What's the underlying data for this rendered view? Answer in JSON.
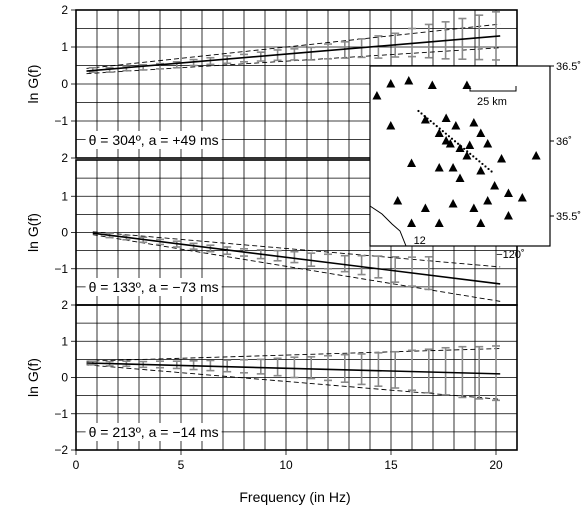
{
  "chart_data": {
    "type": "scatter",
    "xlabel": "Frequency (in Hz)",
    "ylabel": "ln G(f)",
    "xlim": [
      0,
      21
    ],
    "x_ticks": [
      "0",
      "5",
      "10",
      "15",
      "20"
    ],
    "y_ticks": [
      "2",
      "1",
      "0",
      "−1",
      "2"
    ],
    "y_ticks_last": [
      "2",
      "1",
      "0",
      "−1",
      "−2"
    ],
    "panels": [
      {
        "label": "θ = 304º, a = +49 ms",
        "ylim": [
          -2,
          2
        ],
        "fit": [
          [
            0.5,
            0.35
          ],
          [
            20.2,
            1.3
          ]
        ],
        "conf_upper": [
          [
            0.5,
            0.42
          ],
          [
            20.2,
            1.62
          ]
        ],
        "conf_lower": [
          [
            0.5,
            0.28
          ],
          [
            20.2,
            0.98
          ]
        ],
        "points": [
          {
            "x": 0.8,
            "y": 0.38,
            "err": 0.06
          },
          {
            "x": 1.6,
            "y": 0.38,
            "err": 0.06
          },
          {
            "x": 2.4,
            "y": 0.42,
            "err": 0.06
          },
          {
            "x": 3.2,
            "y": 0.45,
            "err": 0.07
          },
          {
            "x": 4.0,
            "y": 0.48,
            "err": 0.07
          },
          {
            "x": 4.8,
            "y": 0.52,
            "err": 0.08
          },
          {
            "x": 5.6,
            "y": 0.58,
            "err": 0.08
          },
          {
            "x": 6.4,
            "y": 0.62,
            "err": 0.09
          },
          {
            "x": 7.2,
            "y": 0.66,
            "err": 0.1
          },
          {
            "x": 8.0,
            "y": 0.7,
            "err": 0.1
          },
          {
            "x": 8.8,
            "y": 0.74,
            "err": 0.12
          },
          {
            "x": 9.6,
            "y": 0.78,
            "err": 0.14
          },
          {
            "x": 10.4,
            "y": 0.8,
            "err": 0.15
          },
          {
            "x": 11.2,
            "y": 0.82,
            "err": 0.17
          },
          {
            "x": 12.0,
            "y": 0.88,
            "err": 0.2
          },
          {
            "x": 12.8,
            "y": 0.92,
            "err": 0.22
          },
          {
            "x": 13.6,
            "y": 0.97,
            "err": 0.25
          },
          {
            "x": 14.4,
            "y": 1.0,
            "err": 0.3
          },
          {
            "x": 15.2,
            "y": 1.05,
            "err": 0.32
          },
          {
            "x": 16.0,
            "y": 1.12,
            "err": 0.38
          },
          {
            "x": 16.8,
            "y": 1.16,
            "err": 0.45
          },
          {
            "x": 17.6,
            "y": 1.18,
            "err": 0.5
          },
          {
            "x": 18.4,
            "y": 1.22,
            "err": 0.55
          },
          {
            "x": 19.2,
            "y": 1.26,
            "err": 0.6
          },
          {
            "x": 20.0,
            "y": 1.3,
            "err": 0.65
          }
        ]
      },
      {
        "label": "θ = 133º, a = −73 ms",
        "ylim": [
          -2,
          2
        ],
        "fit": [
          [
            0.8,
            -0.02
          ],
          [
            20.2,
            -1.42
          ]
        ],
        "conf_upper": [
          [
            0.8,
            0.02
          ],
          [
            20.2,
            -0.95
          ]
        ],
        "conf_lower": [
          [
            0.8,
            -0.06
          ],
          [
            20.2,
            -1.9
          ]
        ],
        "points": [
          {
            "x": 1.6,
            "y": -0.08,
            "err": 0.06
          },
          {
            "x": 2.4,
            "y": -0.14,
            "err": 0.06
          },
          {
            "x": 3.2,
            "y": -0.2,
            "err": 0.07
          },
          {
            "x": 4.0,
            "y": -0.26,
            "err": 0.07
          },
          {
            "x": 4.8,
            "y": -0.32,
            "err": 0.08
          },
          {
            "x": 5.6,
            "y": -0.38,
            "err": 0.08
          },
          {
            "x": 6.4,
            "y": -0.44,
            "err": 0.09
          },
          {
            "x": 7.2,
            "y": -0.5,
            "err": 0.1
          },
          {
            "x": 8.0,
            "y": -0.55,
            "err": 0.1
          },
          {
            "x": 8.8,
            "y": -0.6,
            "err": 0.12
          },
          {
            "x": 9.6,
            "y": -0.64,
            "err": 0.14
          },
          {
            "x": 10.4,
            "y": -0.68,
            "err": 0.15
          },
          {
            "x": 11.2,
            "y": -0.75,
            "err": 0.18
          },
          {
            "x": 12.0,
            "y": -0.8,
            "err": 0.2
          },
          {
            "x": 12.8,
            "y": -0.86,
            "err": 0.22
          },
          {
            "x": 13.6,
            "y": -0.9,
            "err": 0.26
          },
          {
            "x": 14.4,
            "y": -0.95,
            "err": 0.3
          },
          {
            "x": 15.2,
            "y": -1.02,
            "err": 0.35
          },
          {
            "x": 16.0,
            "y": -1.08,
            "err": 0.4
          },
          {
            "x": 16.8,
            "y": -1.12,
            "err": 0.45
          }
        ]
      },
      {
        "label": "θ = 213º, a = −14 ms",
        "ylim": [
          -2,
          2
        ],
        "fit": [
          [
            0.5,
            0.4
          ],
          [
            20.2,
            0.1
          ]
        ],
        "conf_upper": [
          [
            0.5,
            0.45
          ],
          [
            20.2,
            0.8
          ]
        ],
        "conf_lower": [
          [
            0.5,
            0.35
          ],
          [
            20.2,
            -0.6
          ]
        ],
        "points": [
          {
            "x": 0.8,
            "y": 0.4,
            "err": 0.05
          },
          {
            "x": 1.6,
            "y": 0.38,
            "err": 0.06
          },
          {
            "x": 2.4,
            "y": 0.38,
            "err": 0.07
          },
          {
            "x": 3.2,
            "y": 0.36,
            "err": 0.08
          },
          {
            "x": 4.0,
            "y": 0.36,
            "err": 0.09
          },
          {
            "x": 4.8,
            "y": 0.35,
            "err": 0.1
          },
          {
            "x": 5.6,
            "y": 0.34,
            "err": 0.12
          },
          {
            "x": 6.4,
            "y": 0.33,
            "err": 0.14
          },
          {
            "x": 7.2,
            "y": 0.32,
            "err": 0.16
          },
          {
            "x": 8.0,
            "y": 0.31,
            "err": 0.18
          },
          {
            "x": 8.8,
            "y": 0.3,
            "err": 0.2
          },
          {
            "x": 9.6,
            "y": 0.29,
            "err": 0.24
          },
          {
            "x": 10.4,
            "y": 0.28,
            "err": 0.28
          },
          {
            "x": 11.2,
            "y": 0.27,
            "err": 0.3
          },
          {
            "x": 12.0,
            "y": 0.26,
            "err": 0.34
          },
          {
            "x": 12.8,
            "y": 0.25,
            "err": 0.38
          },
          {
            "x": 13.6,
            "y": 0.23,
            "err": 0.42
          },
          {
            "x": 14.4,
            "y": 0.22,
            "err": 0.46
          },
          {
            "x": 15.2,
            "y": 0.21,
            "err": 0.5
          },
          {
            "x": 16.0,
            "y": 0.2,
            "err": 0.55
          },
          {
            "x": 16.8,
            "y": 0.18,
            "err": 0.6
          },
          {
            "x": 17.6,
            "y": 0.17,
            "err": 0.65
          },
          {
            "x": 18.4,
            "y": 0.15,
            "err": 0.7
          },
          {
            "x": 19.2,
            "y": 0.13,
            "err": 0.72
          },
          {
            "x": 20.0,
            "y": 0.12,
            "err": 0.75
          }
        ]
      }
    ],
    "inset_map": {
      "lat_labels": [
        "36.5˚",
        "36˚",
        "35.5˚"
      ],
      "lon_label": "−120˚",
      "lon_label_partial": "12",
      "scale_label": "25 km",
      "lat_range": [
        35.3,
        36.5
      ],
      "lon_range": [
        -121.0,
        -119.7
      ],
      "stations": [
        [
          -120.95,
          36.3
        ],
        [
          -120.85,
          36.38
        ],
        [
          -120.72,
          36.4
        ],
        [
          -120.55,
          36.37
        ],
        [
          -120.3,
          36.37
        ],
        [
          -120.45,
          36.15
        ],
        [
          -120.6,
          36.14
        ],
        [
          -120.85,
          36.1
        ],
        [
          -120.38,
          36.1
        ],
        [
          -120.25,
          36.12
        ],
        [
          -120.5,
          36.05
        ],
        [
          -120.45,
          36.0
        ],
        [
          -120.42,
          35.98
        ],
        [
          -120.35,
          35.95
        ],
        [
          -120.3,
          35.9
        ],
        [
          -120.28,
          35.97
        ],
        [
          -120.2,
          36.05
        ],
        [
          -120.15,
          35.98
        ],
        [
          -120.05,
          35.88
        ],
        [
          -119.8,
          35.9
        ],
        [
          -120.7,
          35.85
        ],
        [
          -120.5,
          35.82
        ],
        [
          -120.4,
          35.82
        ],
        [
          -120.2,
          35.8
        ],
        [
          -120.35,
          35.75
        ],
        [
          -120.1,
          35.7
        ],
        [
          -120.0,
          35.65
        ],
        [
          -119.9,
          35.62
        ],
        [
          -120.15,
          35.6
        ],
        [
          -120.4,
          35.58
        ],
        [
          -120.6,
          35.55
        ],
        [
          -120.8,
          35.6
        ],
        [
          -120.7,
          35.45
        ],
        [
          -120.5,
          35.45
        ],
        [
          -120.2,
          35.45
        ],
        [
          -120.0,
          35.5
        ],
        [
          -120.25,
          35.55
        ]
      ]
    }
  }
}
